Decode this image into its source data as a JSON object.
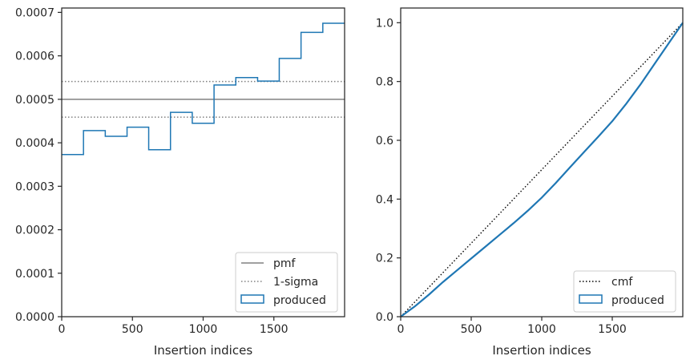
{
  "chart_data": [
    {
      "type": "step",
      "xlabel": "Insertion indices",
      "ylabel": "",
      "xlim": [
        0,
        2000
      ],
      "ylim": [
        0,
        0.00071
      ],
      "xticks": [
        0,
        500,
        1000,
        1500
      ],
      "xtick_labels": [
        "0",
        "500",
        "1000",
        "1500"
      ],
      "yticks": [
        0,
        0.0001,
        0.0002,
        0.0003,
        0.0004,
        0.0005,
        0.0006,
        0.0007
      ],
      "ytick_labels": [
        "0.0000",
        "0.0001",
        "0.0002",
        "0.0003",
        "0.0004",
        "0.0005",
        "0.0006",
        "0.0007"
      ],
      "grid": false,
      "legend_position": "lower-right",
      "reference_lines": [
        {
          "name": "pmf",
          "y": 0.0005,
          "style": "solid",
          "color": "#808080"
        },
        {
          "name": "1-sigma",
          "y": 0.000541,
          "style": "dotted",
          "color": "#808080"
        },
        {
          "name": "1-sigma",
          "y": 0.000459,
          "style": "dotted",
          "color": "#808080"
        }
      ],
      "series": [
        {
          "name": "produced",
          "color": "#1f77b4",
          "bin_edges": [
            0,
            154,
            308,
            462,
            615,
            769,
            923,
            1077,
            1231,
            1385,
            1538,
            1692,
            1846,
            2000
          ],
          "values": [
            0.000373,
            0.000428,
            0.000415,
            0.000436,
            0.000384,
            0.00047,
            0.000445,
            0.000533,
            0.00055,
            0.000542,
            0.000594,
            0.000654,
            0.000675
          ]
        }
      ],
      "legend": [
        {
          "label": "pmf",
          "style": "solid-line",
          "color": "#808080"
        },
        {
          "label": "1-sigma",
          "style": "dotted-line",
          "color": "#808080"
        },
        {
          "label": "produced",
          "style": "box",
          "color": "#1f77b4"
        }
      ]
    },
    {
      "type": "line",
      "xlabel": "Insertion indices",
      "ylabel": "",
      "xlim": [
        0,
        2000
      ],
      "ylim": [
        0,
        1.05
      ],
      "xticks": [
        0,
        500,
        1000,
        1500
      ],
      "xtick_labels": [
        "0",
        "500",
        "1000",
        "1500"
      ],
      "yticks": [
        0,
        0.2,
        0.4,
        0.6,
        0.8,
        1.0
      ],
      "ytick_labels": [
        "0.0",
        "0.2",
        "0.4",
        "0.6",
        "0.8",
        "1.0"
      ],
      "grid": false,
      "legend_position": "lower-right",
      "series": [
        {
          "name": "cmf",
          "style": "dotted",
          "color": "#000000",
          "x": [
            0,
            2000
          ],
          "y": [
            0,
            1.0
          ]
        },
        {
          "name": "produced",
          "style": "solid",
          "color": "#1f77b4",
          "x": [
            0,
            100,
            200,
            300,
            400,
            500,
            600,
            700,
            800,
            900,
            1000,
            1100,
            1200,
            1300,
            1400,
            1500,
            1600,
            1700,
            1800,
            1900,
            2000
          ],
          "y": [
            0,
            0.035,
            0.075,
            0.118,
            0.158,
            0.198,
            0.238,
            0.278,
            0.318,
            0.36,
            0.405,
            0.455,
            0.508,
            0.56,
            0.612,
            0.665,
            0.725,
            0.79,
            0.86,
            0.93,
            1.0
          ]
        }
      ],
      "legend": [
        {
          "label": "cmf",
          "style": "dotted-line",
          "color": "#000000"
        },
        {
          "label": "produced",
          "style": "box",
          "color": "#1f77b4"
        }
      ]
    }
  ]
}
